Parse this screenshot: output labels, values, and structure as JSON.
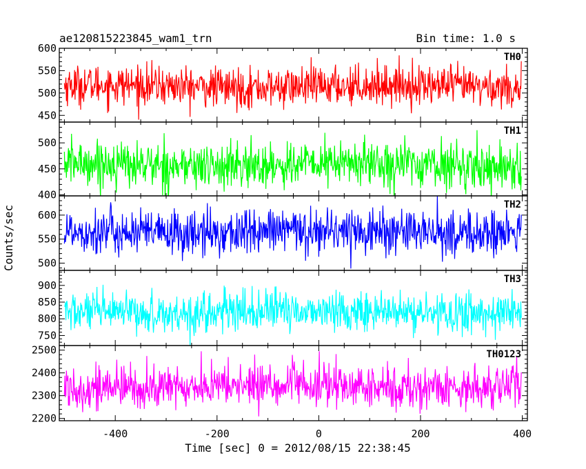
{
  "chart_data": {
    "type": "line",
    "title": "ae120815223845_wam1_trn",
    "subtitle": "Bin time: 1.0 s",
    "xlabel": "Time [sec] 0 = 2012/08/15 22:38:45",
    "ylabel": "Counts/sec",
    "xlim": [
      -510,
      410
    ],
    "xticks": [
      -400,
      -200,
      0,
      200,
      400
    ],
    "grid": false,
    "panels": [
      {
        "name": "TH0",
        "color": "#ff0000",
        "ylim": [
          435,
          600
        ],
        "yticks": [
          450,
          500,
          550,
          600
        ],
        "mean": 515,
        "spread": 22
      },
      {
        "name": "TH1",
        "color": "#00ff00",
        "ylim": [
          398,
          540
        ],
        "yticks": [
          400,
          450,
          500
        ],
        "mean": 458,
        "spread": 22
      },
      {
        "name": "TH2",
        "color": "#0000ff",
        "ylim": [
          485,
          640
        ],
        "yticks": [
          500,
          550,
          600
        ],
        "mean": 565,
        "spread": 24
      },
      {
        "name": "TH3",
        "color": "#00ffff",
        "ylim": [
          720,
          945
        ],
        "yticks": [
          750,
          800,
          850,
          900
        ],
        "mean": 820,
        "spread": 30
      },
      {
        "name": "TH0123",
        "color": "#ff00ff",
        "ylim": [
          2190,
          2520
        ],
        "yticks": [
          2200,
          2300,
          2400,
          2500
        ],
        "mean": 2340,
        "spread": 48
      }
    ],
    "x_range": [
      -500,
      398
    ],
    "bin_time": 1.0
  }
}
